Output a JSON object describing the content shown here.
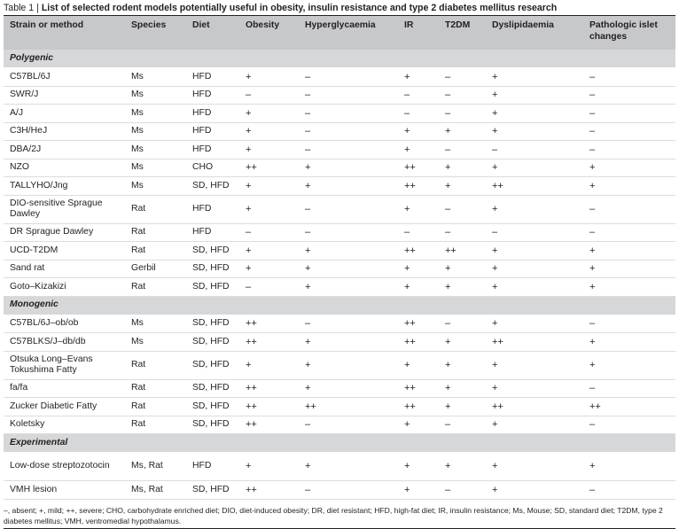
{
  "caption": {
    "label": "Table 1 | ",
    "title": "List of selected rodent models potentially useful in obesity, insulin resistance and type 2 diabetes mellitus research"
  },
  "headers": [
    "Strain or method",
    "Species",
    "Diet",
    "Obesity",
    "Hyperglycaemia",
    "IR",
    "T2DM",
    "Dyslipidaemia",
    "Pathologic islet changes"
  ],
  "rows": [
    {
      "section": "Polygenic"
    },
    {
      "cells": [
        "C57BL/6J",
        "Ms",
        "HFD",
        "+",
        "–",
        "+",
        "–",
        "+",
        "–"
      ]
    },
    {
      "cells": [
        "SWR/J",
        "Ms",
        "HFD",
        "–",
        "–",
        "–",
        "–",
        "+",
        "–"
      ]
    },
    {
      "cells": [
        "A/J",
        "Ms",
        "HFD",
        "+",
        "–",
        "–",
        "–",
        "+",
        "–"
      ]
    },
    {
      "cells": [
        "C3H/HeJ",
        "Ms",
        "HFD",
        "+",
        "–",
        "+",
        "+",
        "+",
        "–"
      ]
    },
    {
      "cells": [
        "DBA/2J",
        "Ms",
        "HFD",
        "+",
        "–",
        "+",
        "–",
        "–",
        "–"
      ]
    },
    {
      "cells": [
        "NZO",
        "Ms",
        "CHO",
        "++",
        "+",
        "++",
        "+",
        "+",
        "+"
      ]
    },
    {
      "cells": [
        "TALLYHO/Jng",
        "Ms",
        "SD, HFD",
        "+",
        "+",
        "++",
        "+",
        "++",
        "+"
      ]
    },
    {
      "cells": [
        "DIO-sensitive Sprague Dawley",
        "Rat",
        "HFD",
        "+",
        "–",
        "+",
        "–",
        "+",
        "–"
      ],
      "tall": true
    },
    {
      "cells": [
        "DR Sprague Dawley",
        "Rat",
        "HFD",
        "–",
        "–",
        "–",
        "–",
        "–",
        "–"
      ]
    },
    {
      "cells": [
        "UCD-T2DM",
        "Rat",
        "SD, HFD",
        "+",
        "+",
        "++",
        "++",
        "+",
        "+"
      ]
    },
    {
      "cells": [
        "Sand rat",
        "Gerbil",
        "SD, HFD",
        "+",
        "+",
        "+",
        "+",
        "+",
        "+"
      ]
    },
    {
      "cells": [
        "Goto–Kizakizi",
        "Rat",
        "SD, HFD",
        "–",
        "+",
        "+",
        "+",
        "+",
        "+"
      ]
    },
    {
      "section": "Monogenic"
    },
    {
      "cells": [
        "C57BL/6J–ob/ob",
        "Ms",
        "SD, HFD",
        "++",
        "–",
        "++",
        "–",
        "+",
        "–"
      ]
    },
    {
      "cells": [
        "C57BLKS/J–db/db",
        "Ms",
        "SD, HFD",
        "++",
        "+",
        "++",
        "+",
        "++",
        "+"
      ]
    },
    {
      "cells": [
        "Otsuka Long–Evans Tokushima Fatty",
        "Rat",
        "SD, HFD",
        "+",
        "+",
        "+",
        "+",
        "+",
        "+"
      ],
      "tall": true
    },
    {
      "cells": [
        "fa/fa",
        "Rat",
        "SD, HFD",
        "++",
        "+",
        "++",
        "+",
        "+",
        "–"
      ]
    },
    {
      "cells": [
        "Zucker Diabetic Fatty",
        "Rat",
        "SD, HFD",
        "++",
        "++",
        "++",
        "+",
        "++",
        "++"
      ]
    },
    {
      "cells": [
        "Koletsky",
        "Rat",
        "SD, HFD",
        "++",
        "–",
        "+",
        "–",
        "+",
        "–"
      ]
    },
    {
      "section": "Experimental"
    },
    {
      "cells": [
        "Low-dose streptozotocin",
        "Ms, Rat",
        "HFD",
        "+",
        "+",
        "+",
        "+",
        "+",
        "+"
      ],
      "tall": true
    },
    {
      "cells": [
        "VMH lesion",
        "Ms, Rat",
        "SD, HFD",
        "++",
        "–",
        "+",
        "–",
        "+",
        "–"
      ]
    }
  ],
  "footnote": "–, absent; +, mild; ++, severe; CHO, carbohydrate enriched diet; DIO, diet-induced obesity; DR, diet resistant; HFD, high-fat diet; IR, insulin resistance; Ms, Mouse; SD, standard diet; T2DM, type 2 diabetes mellitus; VMH, ventromedial hypothalamus."
}
